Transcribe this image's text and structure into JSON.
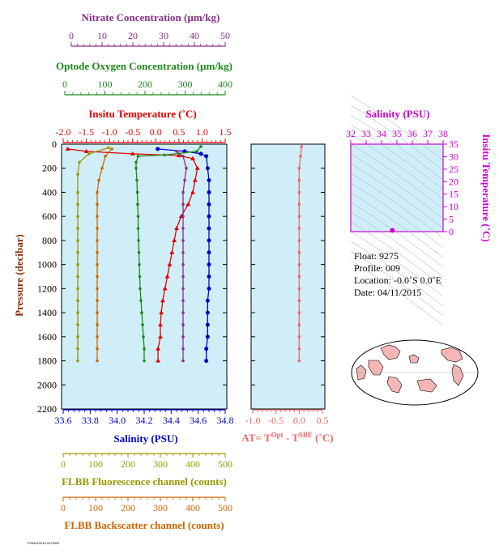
{
  "colors": {
    "nitrate": "#8b2e8b",
    "oxygen": "#1a8a1a",
    "temperature": "#e00000",
    "salinity": "#0000cc",
    "fluorescence": "#999900",
    "backscatter": "#cc6600",
    "dt": "#ee6666",
    "ts": "#cc00cc",
    "panel_bg": "#d0eef8",
    "land": "#f4b6b6"
  },
  "axes": {
    "nitrate": {
      "title": "Nitrate Concentration (µm/kg)",
      "ticks": [
        "0",
        "10",
        "20",
        "30",
        "40",
        "50"
      ]
    },
    "oxygen": {
      "title": "Optode Oxygen Concentration (µm/kg)",
      "ticks": [
        "0",
        "100",
        "200",
        "300",
        "400"
      ]
    },
    "temperature": {
      "title": "Insitu Temperature (˚C)",
      "ticks": [
        "-2.0",
        "-1.5",
        "-1.0",
        "-0.5",
        "0.0",
        "0.5",
        "1.0",
        "1.5"
      ]
    },
    "pressure": {
      "title": "Pressure (decibar)",
      "ticks": [
        "0",
        "200",
        "400",
        "600",
        "800",
        "1000",
        "1200",
        "1400",
        "1600",
        "1800",
        "2000",
        "2200"
      ]
    },
    "salinity": {
      "title": "Salinity (PSU)",
      "ticks": [
        "33.6",
        "33.8",
        "34.0",
        "34.2",
        "34.4",
        "34.6",
        "34.8"
      ]
    },
    "fluorescence": {
      "title": "FLBB Fluorescence channel (counts)",
      "ticks": [
        "0",
        "100",
        "200",
        "300",
        "400",
        "500"
      ]
    },
    "backscatter": {
      "title": "FLBB Backscatter channel (counts)",
      "ticks": [
        "0",
        "100",
        "200",
        "300",
        "400",
        "500"
      ]
    },
    "dt": {
      "title_main": "AT= T",
      "sup1": "Opt",
      "title_mid": " - T",
      "sup2": "SBE",
      "title_end": " (˚C)",
      "ticks": [
        "-1.0",
        "-0.5",
        "0.0",
        "0.5"
      ]
    },
    "ts_salinity": {
      "title": "Salinity (PSU)",
      "ticks": [
        "32",
        "33",
        "34",
        "35",
        "36",
        "37",
        "38"
      ]
    },
    "ts_temperature": {
      "title": "Insitu Temperature (˚C)",
      "ticks": [
        "0",
        "5",
        "10",
        "15",
        "20",
        "25",
        "30",
        "35"
      ]
    }
  },
  "info": {
    "float": "Float:  9275",
    "profile": "Profile:  009",
    "location": "Location:  -0.0˚S   0.0˚E",
    "date": "Date:  04/11/2015"
  },
  "footer": "P090412015 9275009",
  "chart_data": {
    "type": "line",
    "y_axis": "pressure",
    "ylim": [
      0,
      2200
    ],
    "series": [
      {
        "axis": "salinity",
        "xlim": [
          33.6,
          34.8
        ],
        "points": [
          [
            34.3,
            40
          ],
          [
            34.5,
            60
          ],
          [
            34.62,
            80
          ],
          [
            34.66,
            100
          ],
          [
            34.67,
            200
          ],
          [
            34.68,
            300
          ],
          [
            34.68,
            400
          ],
          [
            34.68,
            500
          ],
          [
            34.68,
            600
          ],
          [
            34.68,
            700
          ],
          [
            34.68,
            800
          ],
          [
            34.68,
            900
          ],
          [
            34.68,
            1000
          ],
          [
            34.68,
            1100
          ],
          [
            34.68,
            1200
          ],
          [
            34.67,
            1300
          ],
          [
            34.67,
            1400
          ],
          [
            34.67,
            1500
          ],
          [
            34.67,
            1600
          ],
          [
            34.66,
            1700
          ],
          [
            34.66,
            1800
          ]
        ]
      },
      {
        "axis": "temperature",
        "xlim": [
          -2.0,
          1.5
        ],
        "points": [
          [
            -1.9,
            40
          ],
          [
            -1.5,
            60
          ],
          [
            -0.5,
            80
          ],
          [
            0.5,
            95
          ],
          [
            0.8,
            120
          ],
          [
            0.9,
            200
          ],
          [
            0.85,
            300
          ],
          [
            0.8,
            400
          ],
          [
            0.7,
            500
          ],
          [
            0.55,
            600
          ],
          [
            0.45,
            700
          ],
          [
            0.4,
            800
          ],
          [
            0.35,
            900
          ],
          [
            0.3,
            1000
          ],
          [
            0.25,
            1100
          ],
          [
            0.2,
            1200
          ],
          [
            0.15,
            1300
          ],
          [
            0.12,
            1400
          ],
          [
            0.1,
            1500
          ],
          [
            0.1,
            1600
          ],
          [
            0.05,
            1700
          ],
          [
            0.05,
            1800
          ]
        ]
      },
      {
        "axis": "nitrate",
        "xlim": [
          0,
          50
        ],
        "points": [
          [
            35,
            60
          ],
          [
            37,
            100
          ],
          [
            38,
            200
          ],
          [
            37.5,
            300
          ],
          [
            37,
            400
          ],
          [
            37,
            500
          ],
          [
            37,
            600
          ],
          [
            37,
            700
          ],
          [
            37,
            800
          ],
          [
            37,
            900
          ],
          [
            37,
            1000
          ],
          [
            37,
            1100
          ],
          [
            37,
            1200
          ],
          [
            37,
            1300
          ],
          [
            37,
            1400
          ],
          [
            37,
            1500
          ],
          [
            37,
            1600
          ],
          [
            37,
            1700
          ],
          [
            37,
            1800
          ]
        ]
      },
      {
        "axis": "oxygen",
        "xlim": [
          0,
          400
        ],
        "points": [
          [
            340,
            20
          ],
          [
            330,
            60
          ],
          [
            250,
            90
          ],
          [
            185,
            100
          ],
          [
            180,
            150
          ],
          [
            180,
            200
          ],
          [
            182,
            300
          ],
          [
            183,
            400
          ],
          [
            184,
            500
          ],
          [
            185,
            600
          ],
          [
            185,
            700
          ],
          [
            186,
            800
          ],
          [
            187,
            900
          ],
          [
            188,
            1000
          ],
          [
            189,
            1100
          ],
          [
            190,
            1200
          ],
          [
            192,
            1300
          ],
          [
            194,
            1400
          ],
          [
            196,
            1500
          ],
          [
            198,
            1600
          ],
          [
            200,
            1700
          ],
          [
            200,
            1800
          ]
        ]
      },
      {
        "axis": "fluorescence",
        "xlim": [
          0,
          500
        ],
        "points": [
          [
            140,
            30
          ],
          [
            80,
            80
          ],
          [
            50,
            150
          ],
          [
            45,
            250
          ],
          [
            45,
            400
          ],
          [
            45,
            500
          ],
          [
            45,
            600
          ],
          [
            45,
            700
          ],
          [
            45,
            800
          ],
          [
            45,
            900
          ],
          [
            45,
            1000
          ],
          [
            45,
            1100
          ],
          [
            45,
            1200
          ],
          [
            45,
            1300
          ],
          [
            45,
            1400
          ],
          [
            45,
            1500
          ],
          [
            45,
            1600
          ],
          [
            45,
            1700
          ],
          [
            45,
            1800
          ]
        ]
      },
      {
        "axis": "backscatter",
        "xlim": [
          0,
          500
        ],
        "points": [
          [
            150,
            40
          ],
          [
            130,
            100
          ],
          [
            120,
            200
          ],
          [
            110,
            300
          ],
          [
            105,
            400
          ],
          [
            105,
            500
          ],
          [
            105,
            600
          ],
          [
            105,
            700
          ],
          [
            105,
            800
          ],
          [
            105,
            900
          ],
          [
            105,
            1000
          ],
          [
            105,
            1100
          ],
          [
            105,
            1200
          ],
          [
            105,
            1300
          ],
          [
            105,
            1400
          ],
          [
            105,
            1500
          ],
          [
            105,
            1600
          ],
          [
            105,
            1700
          ],
          [
            105,
            1800
          ]
        ]
      },
      {
        "axis": "dt",
        "xlim": [
          -1.0,
          0.5
        ],
        "points": [
          [
            0.05,
            20
          ],
          [
            0.03,
            100
          ],
          [
            0.0,
            200
          ],
          [
            0.0,
            300
          ],
          [
            0.0,
            400
          ],
          [
            0.0,
            500
          ],
          [
            0.0,
            600
          ],
          [
            0.0,
            700
          ],
          [
            0.0,
            800
          ],
          [
            0.0,
            900
          ],
          [
            0.0,
            1000
          ],
          [
            0.0,
            1100
          ],
          [
            0.0,
            1200
          ],
          [
            0.0,
            1300
          ],
          [
            0.0,
            1400
          ],
          [
            0.0,
            1500
          ],
          [
            0.0,
            1600
          ],
          [
            0.0,
            1700
          ],
          [
            0.0,
            1800
          ]
        ]
      }
    ],
    "ts_point": {
      "salinity": 34.7,
      "temperature": 0.5
    }
  }
}
